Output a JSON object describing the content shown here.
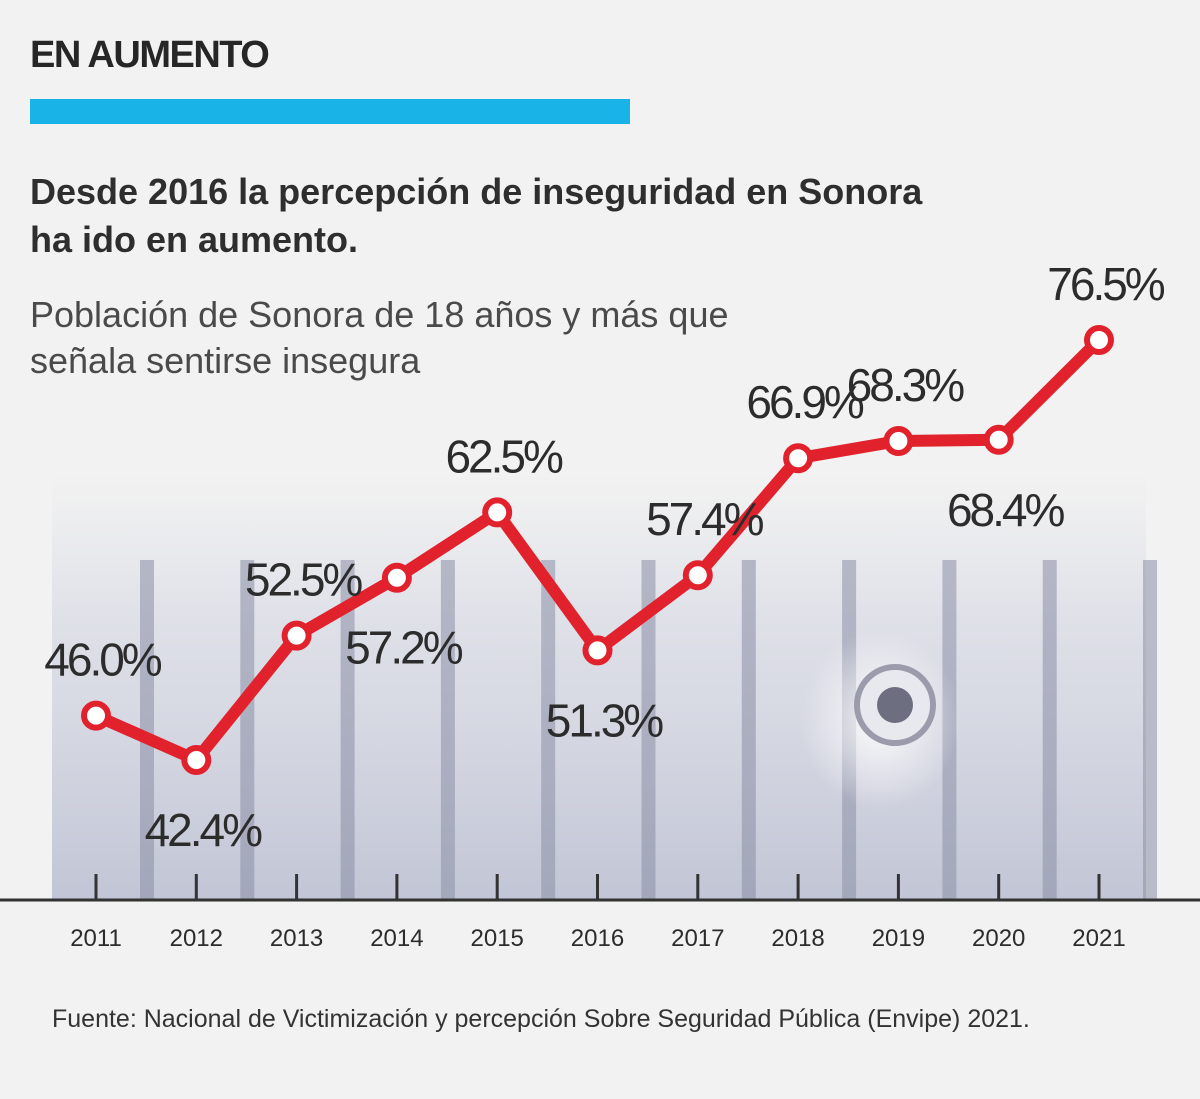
{
  "kicker": "EN AUMENTO",
  "headline": "Desde 2016 la percepción de inseguridad en Sonora ha ido en aumento.",
  "subtitle": "Población de Sonora de 18 años y más que señala sentirse insegura",
  "source": "Fuente: Nacional de Victimización y percepción Sobre Seguridad Pública (Envipe) 2021.",
  "colors": {
    "accent": "#1ab3e8",
    "line": "#e1222c",
    "text": "#2b2b2b",
    "background": "#f2f2f2"
  },
  "chart_data": {
    "type": "line",
    "categories": [
      "2011",
      "2012",
      "2013",
      "2014",
      "2015",
      "2016",
      "2017",
      "2018",
      "2019",
      "2020",
      "2021"
    ],
    "values": [
      46.0,
      42.4,
      52.5,
      57.2,
      62.5,
      51.3,
      57.4,
      66.9,
      68.3,
      68.4,
      76.5
    ],
    "data_labels": [
      "46.0%",
      "42.4%",
      "52.5%",
      "57.2%",
      "62.5%",
      "51.3%",
      "57.4%",
      "66.9%",
      "68.3%",
      "68.4%",
      "76.5%"
    ],
    "label_position": [
      "above",
      "below",
      "above",
      "below",
      "above",
      "below",
      "above",
      "above",
      "above",
      "below",
      "above"
    ],
    "ylim": [
      20,
      80
    ],
    "grid": false,
    "legend": "none"
  }
}
